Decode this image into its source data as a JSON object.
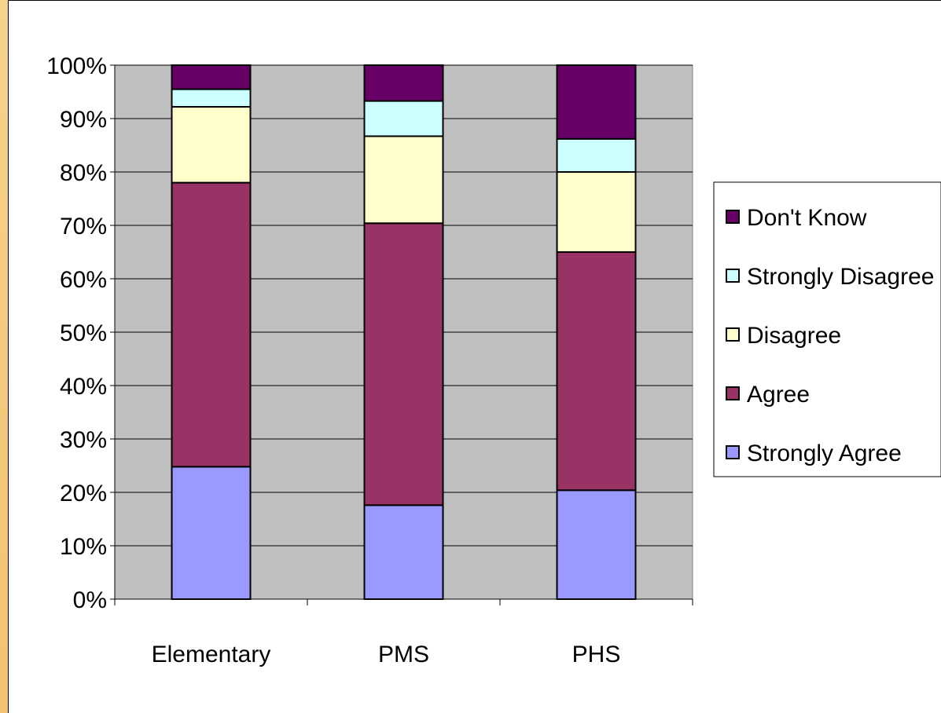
{
  "chart_data": {
    "type": "bar",
    "stacked": true,
    "normalized_percent": true,
    "categories": [
      "Elementary",
      "PMS",
      "PHS"
    ],
    "series": [
      {
        "name": "Strongly Agree",
        "color": "#9999ff",
        "values": [
          24.8,
          17.6,
          20.4
        ]
      },
      {
        "name": "Agree",
        "color": "#993366",
        "values": [
          53.2,
          52.8,
          44.6
        ]
      },
      {
        "name": "Disagree",
        "color": "#ffffcc",
        "values": [
          14.2,
          16.3,
          15.0
        ]
      },
      {
        "name": "Strongly Disagree",
        "color": "#ccffff",
        "values": [
          3.3,
          6.6,
          6.2
        ]
      },
      {
        "name": "Don't Know",
        "color": "#660066",
        "values": [
          4.5,
          6.7,
          13.8
        ]
      }
    ],
    "y_ticks": [
      "0%",
      "10%",
      "20%",
      "30%",
      "40%",
      "50%",
      "60%",
      "70%",
      "80%",
      "90%",
      "100%"
    ],
    "ylim": [
      0,
      100
    ],
    "grid": true,
    "plot_background": "#c0c0c0",
    "legend_position": "right",
    "legend_order": [
      "Don't Know",
      "Strongly Disagree",
      "Disagree",
      "Agree",
      "Strongly Agree"
    ],
    "title": "",
    "xlabel": "",
    "ylabel": ""
  }
}
